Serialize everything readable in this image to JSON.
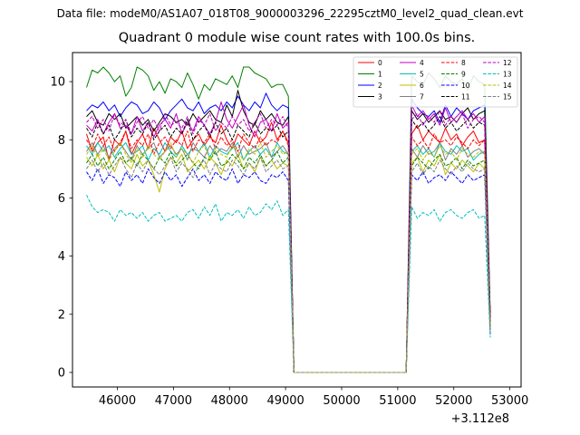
{
  "figure": {
    "suptitle": "Data file: modeM0/AS1A07_018T08_9000003296_22295cztM0_level2_quad_clean.evt",
    "title": "Quadrant 0 module wise count rates with 100.0s bins."
  },
  "chart_data": {
    "type": "line",
    "title": "Quadrant 0 module wise count rates with 100.0s bins.",
    "xlabel": "",
    "ylabel": "",
    "x_offset_label": "+3.112e8",
    "xlim": [
      45200,
      53200
    ],
    "ylim": [
      -0.5,
      11.0
    ],
    "xticks": [
      46000,
      47000,
      48000,
      49000,
      50000,
      51000,
      52000,
      53000
    ],
    "yticks": [
      0,
      2,
      4,
      6,
      8,
      10
    ],
    "grid": false,
    "legend": {
      "location": "upper right",
      "columns": 4
    },
    "segments": [
      {
        "start": 45450,
        "end": 49050,
        "step": 100
      },
      {
        "start": 51250,
        "end": 52550,
        "step": 100
      }
    ],
    "gap": {
      "drop_at": 49150,
      "start": 49150,
      "end": 51150
    },
    "end_x": 52650,
    "series": [
      {
        "name": "0",
        "color": "#ff0000",
        "dash": "solid",
        "seg1": [
          8.2,
          7.6,
          7.9,
          8.1,
          7.3,
          8.0,
          7.8,
          8.3,
          7.5,
          7.9,
          8.2,
          7.7,
          8.4,
          8.0,
          7.6,
          8.1,
          7.9,
          8.3,
          7.7,
          8.0,
          8.2,
          7.8,
          8.1,
          7.9,
          8.5,
          8.0,
          7.7,
          8.2,
          8.0,
          7.8,
          8.3,
          7.9,
          8.1,
          8.6,
          8.0,
          8.3,
          7.9
        ],
        "seg2": [
          8.2,
          8.5,
          8.0,
          8.3,
          8.1,
          7.9,
          8.4,
          8.0,
          8.2,
          7.8,
          8.1,
          8.3,
          7.9,
          8.0
        ],
        "end": 1.6
      },
      {
        "name": "1",
        "color": "#008000",
        "dash": "solid",
        "seg1": [
          9.8,
          10.4,
          10.3,
          10.5,
          10.3,
          10.0,
          10.2,
          9.5,
          9.8,
          10.5,
          10.4,
          10.2,
          9.7,
          10.0,
          9.6,
          10.1,
          10.0,
          9.8,
          10.3,
          9.9,
          9.4,
          9.9,
          9.7,
          10.1,
          10.0,
          9.9,
          10.2,
          9.8,
          10.5,
          10.5,
          10.3,
          10.2,
          10.1,
          9.8,
          9.9,
          9.9,
          9.5
        ],
        "seg2": [
          10.2,
          10.0,
          9.9,
          10.3,
          10.1,
          9.8,
          10.2,
          10.0,
          9.9,
          10.1,
          9.7,
          10.2,
          10.0,
          9.9
        ],
        "end": 2.0
      },
      {
        "name": "2",
        "color": "#0000ff",
        "dash": "solid",
        "seg1": [
          9.0,
          9.2,
          9.1,
          9.3,
          9.0,
          9.2,
          8.8,
          9.1,
          9.3,
          9.2,
          8.9,
          9.0,
          9.3,
          9.1,
          8.7,
          9.0,
          9.2,
          9.4,
          9.1,
          9.0,
          9.3,
          8.9,
          9.1,
          9.2,
          9.0,
          9.3,
          9.1,
          9.5,
          9.2,
          9.0,
          9.3,
          9.1,
          9.6,
          9.2,
          9.0,
          9.2,
          9.1
        ],
        "seg2": [
          9.4,
          9.1,
          8.9,
          8.8,
          9.0,
          8.6,
          9.2,
          8.8,
          9.1,
          8.9,
          8.7,
          9.0,
          9.1,
          9.2
        ],
        "end": 1.8
      },
      {
        "name": "3",
        "color": "#000000",
        "dash": "solid",
        "seg1": [
          8.8,
          9.0,
          8.6,
          8.5,
          8.9,
          8.7,
          8.9,
          8.4,
          8.6,
          8.8,
          8.5,
          8.7,
          8.3,
          8.6,
          8.9,
          8.8,
          8.6,
          8.7,
          8.5,
          8.9,
          8.6,
          8.8,
          9.0,
          8.7,
          8.6,
          9.2,
          8.8,
          9.7,
          9.0,
          8.6,
          8.5,
          9.0,
          8.7,
          8.9,
          8.6,
          8.5,
          8.8
        ],
        "seg2": [
          9.0,
          8.7,
          8.9,
          8.6,
          8.8,
          9.0,
          8.7,
          8.8,
          8.6,
          8.9,
          9.1,
          8.7,
          8.9,
          9.0
        ],
        "end": 1.9
      },
      {
        "name": "4",
        "color": "#bf00bf",
        "dash": "solid",
        "seg1": [
          8.5,
          8.3,
          8.7,
          8.2,
          8.6,
          8.9,
          8.4,
          8.5,
          8.2,
          8.8,
          8.3,
          8.6,
          8.1,
          8.5,
          8.7,
          8.4,
          8.9,
          8.2,
          8.6,
          8.3,
          8.8,
          8.5,
          8.2,
          8.6,
          9.3,
          8.7,
          8.4,
          8.8,
          9.2,
          8.5,
          8.1,
          8.6,
          8.7,
          8.3,
          8.9,
          8.4,
          8.6
        ],
        "seg2": [
          9.2,
          8.8,
          9.0,
          8.7,
          8.9,
          8.5,
          9.1,
          8.6,
          8.8,
          9.0,
          8.7,
          8.9,
          8.6,
          8.8
        ],
        "end": 1.7
      },
      {
        "name": "5",
        "color": "#00bfbf",
        "dash": "solid",
        "seg1": [
          7.8,
          7.5,
          7.9,
          7.6,
          7.8,
          7.4,
          7.7,
          7.9,
          7.5,
          7.6,
          7.8,
          7.3,
          7.7,
          7.5,
          7.9,
          7.6,
          7.4,
          7.8,
          7.5,
          7.7,
          7.6,
          7.9,
          7.4,
          7.8,
          7.6,
          7.5,
          7.7,
          7.9,
          7.3,
          7.6,
          7.8,
          7.5,
          7.7,
          7.4,
          7.9,
          7.6,
          7.5
        ],
        "seg2": [
          7.6,
          7.8,
          7.5,
          7.7,
          7.4,
          7.9,
          7.6,
          7.5,
          7.8,
          7.6,
          7.7,
          7.3,
          7.5,
          7.6
        ],
        "end": 1.5
      },
      {
        "name": "6",
        "color": "#bfbf00",
        "dash": "solid",
        "seg1": [
          7.4,
          7.1,
          7.5,
          7.0,
          7.3,
          6.9,
          7.4,
          7.2,
          7.0,
          7.5,
          7.1,
          7.3,
          6.8,
          6.2,
          7.0,
          7.4,
          7.2,
          7.5,
          6.9,
          7.1,
          7.3,
          7.0,
          7.4,
          7.2,
          6.8,
          7.3,
          7.1,
          7.5,
          7.0,
          7.2,
          6.9,
          7.4,
          7.1,
          7.3,
          7.0,
          7.2,
          7.1
        ],
        "seg2": [
          7.2,
          7.4,
          6.9,
          7.3,
          7.1,
          7.5,
          6.8,
          7.2,
          7.0,
          7.3,
          7.1,
          6.9,
          7.2,
          7.0
        ],
        "end": 1.4
      },
      {
        "name": "7",
        "color": "#808080",
        "dash": "solid",
        "seg1": [
          7.6,
          7.9,
          7.5,
          7.8,
          7.4,
          7.7,
          7.9,
          7.6,
          7.3,
          7.8,
          7.5,
          7.7,
          7.9,
          7.4,
          7.6,
          7.8,
          7.5,
          7.7,
          7.3,
          7.9,
          7.6,
          7.4,
          7.8,
          7.5,
          7.7,
          7.6,
          7.9,
          7.4,
          7.8,
          7.5,
          7.6,
          7.7,
          7.9,
          7.4,
          7.6,
          7.8,
          7.5
        ],
        "seg2": [
          7.7,
          7.4,
          7.8,
          7.5,
          7.6,
          7.9,
          7.3,
          7.7,
          7.5,
          7.8,
          7.4,
          7.6,
          7.7,
          7.5
        ],
        "end": 1.5
      },
      {
        "name": "8",
        "color": "#ff0000",
        "dash": "dashed",
        "seg1": [
          8.0,
          7.7,
          8.2,
          7.8,
          8.1,
          7.6,
          7.9,
          8.3,
          7.7,
          8.0,
          7.8,
          8.2,
          7.5,
          7.9,
          8.1,
          7.7,
          8.0,
          7.8,
          8.3,
          7.6,
          8.0,
          7.9,
          8.2,
          7.7,
          8.1,
          7.8,
          8.0,
          7.6,
          8.2,
          7.9,
          7.7,
          8.1,
          7.8,
          8.0,
          7.9,
          8.3,
          7.8
        ],
        "seg2": [
          8.1,
          7.8,
          8.0,
          7.7,
          8.2,
          7.9,
          8.0,
          7.8,
          8.1,
          7.9,
          7.7,
          8.0,
          7.8,
          8.0
        ],
        "end": 1.6
      },
      {
        "name": "9",
        "color": "#008000",
        "dash": "dashed",
        "seg1": [
          7.2,
          7.5,
          7.1,
          7.4,
          7.0,
          7.3,
          7.6,
          7.2,
          7.4,
          7.1,
          7.5,
          7.3,
          7.0,
          7.4,
          7.2,
          7.6,
          7.1,
          7.3,
          7.5,
          7.2,
          7.0,
          7.4,
          7.3,
          7.6,
          7.1,
          7.2,
          7.5,
          7.3,
          7.0,
          7.4,
          7.2,
          7.5,
          7.1,
          7.3,
          7.6,
          7.2,
          7.4
        ],
        "seg2": [
          7.1,
          7.4,
          7.2,
          7.0,
          7.3,
          7.5,
          7.1,
          7.2,
          7.4,
          7.0,
          7.3,
          7.1,
          7.2,
          7.3
        ],
        "end": 1.5
      },
      {
        "name": "10",
        "color": "#0000ff",
        "dash": "dashed",
        "seg1": [
          6.9,
          6.6,
          7.0,
          6.5,
          6.8,
          6.7,
          6.4,
          6.9,
          6.6,
          6.8,
          6.5,
          7.0,
          6.7,
          6.5,
          6.9,
          6.6,
          6.8,
          6.4,
          6.7,
          7.0,
          6.6,
          6.8,
          6.5,
          6.9,
          6.7,
          6.6,
          7.0,
          6.5,
          6.8,
          6.7,
          6.9,
          6.6,
          6.5,
          6.8,
          6.7,
          6.9,
          6.6
        ],
        "seg2": [
          6.8,
          6.6,
          6.9,
          6.5,
          6.7,
          6.8,
          6.6,
          6.9,
          6.7,
          6.5,
          6.8,
          6.6,
          6.7,
          6.8
        ],
        "end": 1.3
      },
      {
        "name": "11",
        "color": "#000000",
        "dash": "dashed",
        "seg1": [
          8.4,
          8.1,
          8.6,
          8.2,
          8.5,
          8.0,
          8.3,
          8.7,
          8.1,
          8.4,
          8.2,
          8.6,
          8.0,
          8.3,
          8.5,
          8.1,
          8.4,
          8.2,
          8.7,
          8.0,
          8.3,
          8.5,
          8.1,
          8.6,
          8.2,
          8.4,
          8.0,
          8.5,
          8.3,
          8.1,
          8.6,
          8.2,
          8.4,
          8.3,
          8.5,
          8.1,
          8.3
        ],
        "seg2": [
          8.7,
          8.4,
          8.6,
          8.3,
          8.5,
          8.8,
          8.4,
          8.6,
          8.3,
          8.5,
          8.7,
          8.4,
          8.6,
          8.5
        ],
        "end": 1.8
      },
      {
        "name": "12",
        "color": "#bf00bf",
        "dash": "dashed",
        "seg1": [
          8.6,
          8.8,
          8.4,
          8.7,
          8.3,
          8.9,
          8.5,
          8.7,
          8.2,
          8.6,
          8.8,
          8.4,
          8.7,
          8.3,
          8.9,
          8.5,
          8.6,
          8.4,
          8.8,
          8.2,
          8.7,
          8.5,
          8.9,
          8.3,
          8.6,
          8.4,
          8.8,
          8.5,
          8.7,
          8.3,
          8.6,
          8.9,
          8.4,
          8.7,
          8.5,
          8.8,
          8.4
        ],
        "seg2": [
          8.7,
          8.9,
          8.5,
          8.8,
          8.6,
          9.0,
          8.5,
          8.8,
          8.6,
          8.9,
          8.4,
          8.7,
          8.8,
          8.6
        ],
        "end": 1.7
      },
      {
        "name": "13",
        "color": "#00bfbf",
        "dash": "dashed",
        "seg1": [
          6.1,
          5.7,
          5.5,
          5.6,
          5.5,
          5.2,
          5.6,
          5.4,
          5.5,
          5.3,
          5.5,
          5.2,
          5.4,
          5.5,
          5.2,
          5.3,
          5.4,
          5.2,
          5.5,
          5.6,
          5.3,
          5.7,
          5.4,
          5.8,
          5.2,
          5.5,
          5.4,
          5.6,
          5.3,
          5.7,
          5.4,
          5.5,
          5.8,
          5.6,
          5.9,
          5.4,
          5.6
        ],
        "seg2": [
          5.7,
          5.3,
          5.5,
          5.4,
          5.6,
          5.2,
          5.5,
          5.6,
          5.4,
          5.3,
          5.5,
          5.6,
          5.3,
          5.4
        ],
        "end": 1.2
      },
      {
        "name": "14",
        "color": "#bfbf00",
        "dash": "dashed",
        "seg1": [
          7.5,
          7.8,
          7.4,
          7.7,
          7.3,
          7.6,
          7.9,
          7.5,
          7.2,
          7.7,
          7.4,
          7.8,
          7.5,
          7.3,
          7.6,
          7.9,
          7.4,
          7.7,
          7.5,
          7.2,
          7.6,
          7.8,
          7.3,
          7.7,
          7.5,
          7.4,
          7.8,
          7.6,
          7.3,
          7.7,
          7.5,
          7.9,
          7.4,
          7.6,
          7.8,
          7.5,
          7.6
        ],
        "seg2": [
          7.5,
          7.7,
          7.3,
          7.6,
          7.4,
          7.8,
          7.5,
          7.6,
          7.3,
          7.7,
          7.5,
          7.4,
          7.6,
          7.5
        ],
        "end": 1.5
      },
      {
        "name": "15",
        "color": "#808080",
        "dash": "dashed",
        "seg1": [
          7.0,
          7.3,
          6.9,
          7.2,
          6.8,
          7.1,
          7.4,
          7.0,
          6.7,
          7.2,
          6.9,
          7.3,
          7.0,
          6.8,
          7.1,
          7.4,
          6.9,
          7.2,
          7.0,
          6.7,
          7.1,
          7.3,
          6.8,
          7.2,
          7.0,
          6.9,
          7.3,
          7.1,
          6.8,
          7.2,
          7.0,
          7.4,
          6.9,
          7.1,
          7.3,
          7.0,
          7.1
        ],
        "seg2": [
          6.9,
          7.2,
          6.8,
          7.1,
          6.9,
          7.3,
          7.0,
          6.8,
          7.1,
          6.9,
          7.2,
          7.0,
          6.9,
          7.0
        ],
        "end": 1.4
      }
    ]
  }
}
